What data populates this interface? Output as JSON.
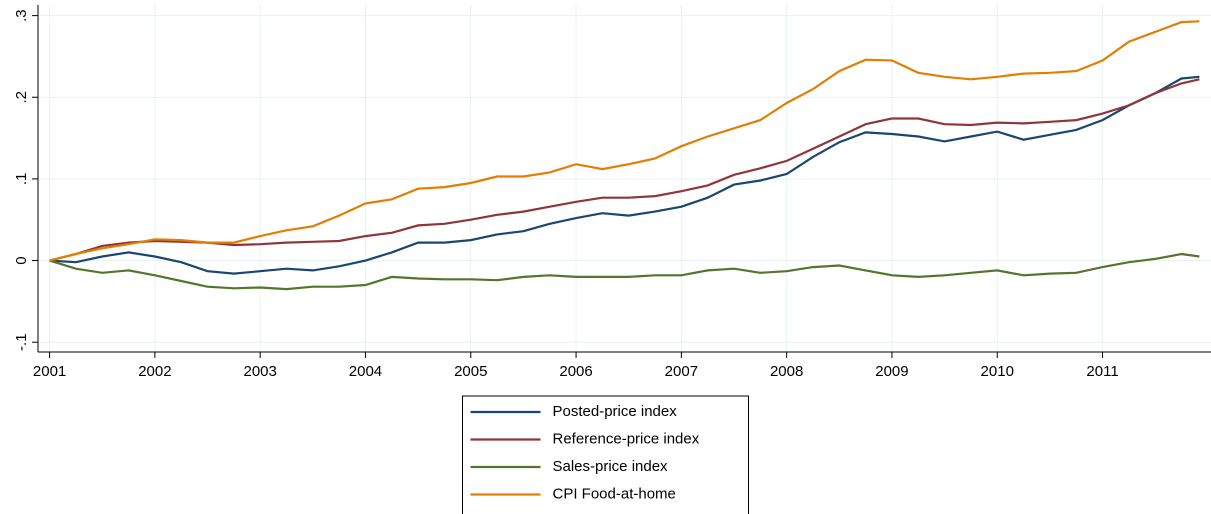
{
  "chart_data": {
    "type": "line",
    "x": [
      2001,
      2001.25,
      2001.5,
      2001.75,
      2002,
      2002.25,
      2002.5,
      2002.75,
      2003,
      2003.25,
      2003.5,
      2003.75,
      2004,
      2004.25,
      2004.5,
      2004.75,
      2005,
      2005.25,
      2005.5,
      2005.75,
      2006,
      2006.25,
      2006.5,
      2006.75,
      2007,
      2007.25,
      2007.5,
      2007.75,
      2008,
      2008.25,
      2008.5,
      2008.75,
      2009,
      2009.25,
      2009.5,
      2009.75,
      2010,
      2010.25,
      2010.5,
      2010.75,
      2011,
      2011.25,
      2011.5,
      2011.75,
      2011.92
    ],
    "series": [
      {
        "name": "Posted-price index",
        "color": "#1a476f",
        "values": [
          0,
          -0.002,
          0.005,
          0.01,
          0.005,
          -0.002,
          -0.013,
          -0.016,
          -0.013,
          -0.01,
          -0.012,
          -0.007,
          0.0,
          0.01,
          0.022,
          0.022,
          0.025,
          0.032,
          0.036,
          0.045,
          0.052,
          0.058,
          0.055,
          0.06,
          0.066,
          0.077,
          0.093,
          0.098,
          0.106,
          0.127,
          0.145,
          0.157,
          0.155,
          0.152,
          0.146,
          0.152,
          0.158,
          0.148,
          0.154,
          0.16,
          0.172,
          0.19,
          0.205,
          0.223,
          0.225
        ]
      },
      {
        "name": "Reference-price index",
        "color": "#90353b",
        "values": [
          0,
          0.008,
          0.018,
          0.022,
          0.024,
          0.023,
          0.022,
          0.019,
          0.02,
          0.022,
          0.023,
          0.024,
          0.03,
          0.034,
          0.043,
          0.045,
          0.05,
          0.056,
          0.06,
          0.066,
          0.072,
          0.077,
          0.077,
          0.079,
          0.085,
          0.092,
          0.105,
          0.113,
          0.122,
          0.137,
          0.152,
          0.167,
          0.174,
          0.174,
          0.167,
          0.166,
          0.169,
          0.168,
          0.17,
          0.172,
          0.18,
          0.19,
          0.205,
          0.217,
          0.222
        ]
      },
      {
        "name": "Sales-price index",
        "color": "#55752f",
        "values": [
          0,
          -0.01,
          -0.015,
          -0.012,
          -0.018,
          -0.025,
          -0.032,
          -0.034,
          -0.033,
          -0.035,
          -0.032,
          -0.032,
          -0.03,
          -0.02,
          -0.022,
          -0.023,
          -0.023,
          -0.024,
          -0.02,
          -0.018,
          -0.02,
          -0.02,
          -0.02,
          -0.018,
          -0.018,
          -0.012,
          -0.01,
          -0.015,
          -0.013,
          -0.008,
          -0.006,
          -0.012,
          -0.018,
          -0.02,
          -0.018,
          -0.015,
          -0.012,
          -0.018,
          -0.016,
          -0.015,
          -0.008,
          -0.002,
          0.002,
          0.008,
          0.005
        ]
      },
      {
        "name": "CPI Food-at-home",
        "color": "#e37e00",
        "values": [
          0,
          0.008,
          0.015,
          0.02,
          0.026,
          0.025,
          0.022,
          0.022,
          0.03,
          0.037,
          0.042,
          0.055,
          0.07,
          0.075,
          0.088,
          0.09,
          0.095,
          0.103,
          0.103,
          0.108,
          0.118,
          0.112,
          0.118,
          0.125,
          0.14,
          0.152,
          0.162,
          0.172,
          0.193,
          0.21,
          0.232,
          0.246,
          0.245,
          0.23,
          0.225,
          0.222,
          0.225,
          0.229,
          0.23,
          0.232,
          0.245,
          0.268,
          0.28,
          0.292,
          0.293
        ]
      }
    ],
    "xlim": [
      2000.89,
      2012.03
    ],
    "xticks": [
      2001,
      2002,
      2003,
      2004,
      2005,
      2006,
      2007,
      2008,
      2009,
      2010,
      2011
    ],
    "ylim": [
      -0.112,
      0.313
    ],
    "yticks": [
      {
        "value": -0.1,
        "label": "-.1"
      },
      0,
      {
        "value": 0.1,
        "label": ".1"
      },
      {
        "value": 0.2,
        "label": ".2"
      },
      {
        "value": 0.3,
        "label": ".3"
      }
    ],
    "grid": true,
    "legend": "bottom"
  }
}
